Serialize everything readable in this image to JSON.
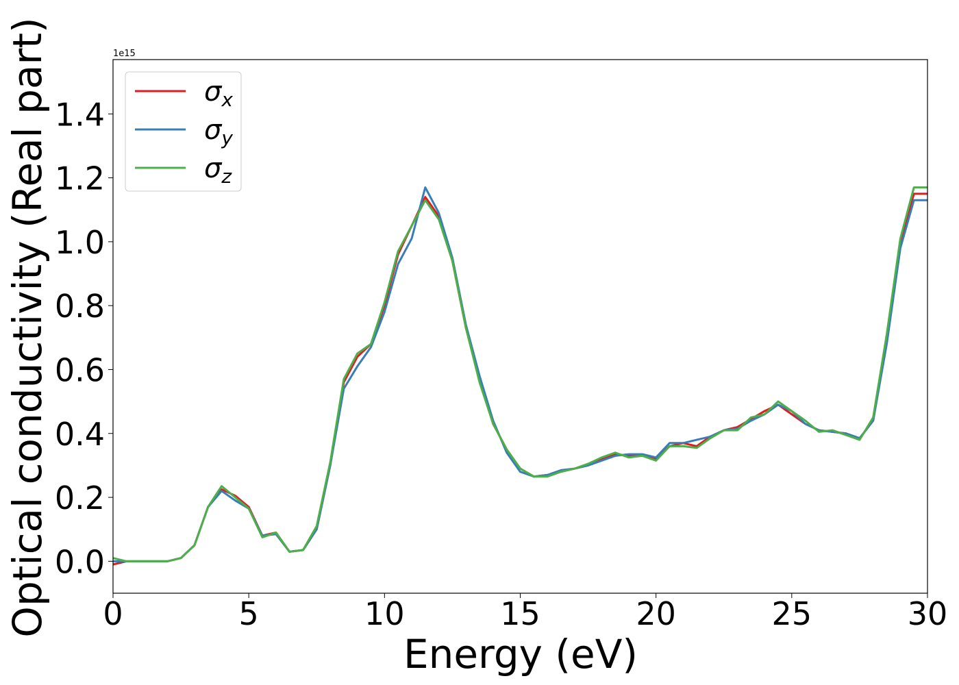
{
  "chart_data": {
    "type": "line",
    "xlabel": "Energy (eV)",
    "ylabel": "Optical conductivity (Real part)",
    "y_offset_label": "1e15",
    "xlim": [
      0,
      30
    ],
    "ylim": [
      -0.1,
      1.57
    ],
    "xticks": [
      0,
      5,
      10,
      15,
      20,
      25,
      30
    ],
    "yticks": [
      {
        "value": 0,
        "label": "0.0"
      },
      {
        "value": 0.2,
        "label": "0.2"
      },
      {
        "value": 0.4,
        "label": "0.4"
      },
      {
        "value": 0.6,
        "label": "0.6"
      },
      {
        "value": 0.8,
        "label": "0.8"
      },
      {
        "value": 1.0,
        "label": "1.0"
      },
      {
        "value": 1.2,
        "label": "1.2"
      },
      {
        "value": 1.4,
        "label": "1.4"
      }
    ],
    "legend": "upper left",
    "x": [
      0,
      0.5,
      1,
      1.5,
      2,
      2.5,
      3,
      3.5,
      4,
      4.5,
      5,
      5.5,
      6,
      6.5,
      7,
      7.5,
      8,
      8.5,
      9,
      9.5,
      10,
      10.5,
      11,
      11.5,
      12,
      12.5,
      13,
      13.5,
      14,
      14.5,
      15,
      15.5,
      16,
      16.5,
      17,
      17.5,
      18,
      18.5,
      19,
      19.5,
      20,
      20.5,
      21,
      21.5,
      22,
      22.5,
      23,
      23.5,
      24,
      24.5,
      25,
      25.5,
      26,
      26.5,
      27,
      27.5,
      28,
      28.5,
      29,
      29.5,
      30
    ],
    "series": [
      {
        "name": "σx",
        "color": "#e41a1c",
        "values": [
          -0.01,
          0.0,
          0.0,
          0.0,
          0.0,
          0.01,
          0.05,
          0.17,
          0.225,
          0.205,
          0.17,
          0.08,
          0.09,
          0.03,
          0.035,
          0.1,
          0.3,
          0.56,
          0.64,
          0.68,
          0.8,
          0.96,
          1.05,
          1.14,
          1.08,
          0.94,
          0.73,
          0.57,
          0.43,
          0.35,
          0.29,
          0.265,
          0.27,
          0.28,
          0.29,
          0.3,
          0.32,
          0.335,
          0.33,
          0.33,
          0.32,
          0.36,
          0.37,
          0.36,
          0.39,
          0.41,
          0.42,
          0.445,
          0.47,
          0.49,
          0.46,
          0.43,
          0.41,
          0.405,
          0.4,
          0.385,
          0.44,
          0.7,
          1.0,
          1.15,
          1.15
        ]
      },
      {
        "name": "σy",
        "color": "#377eb8",
        "values": [
          0.0,
          0.0,
          0.0,
          0.0,
          0.0,
          0.01,
          0.05,
          0.17,
          0.22,
          0.19,
          0.165,
          0.08,
          0.085,
          0.03,
          0.035,
          0.1,
          0.3,
          0.54,
          0.61,
          0.67,
          0.78,
          0.93,
          1.01,
          1.17,
          1.09,
          0.95,
          0.74,
          0.58,
          0.44,
          0.34,
          0.28,
          0.265,
          0.27,
          0.285,
          0.29,
          0.3,
          0.315,
          0.33,
          0.335,
          0.335,
          0.325,
          0.37,
          0.37,
          0.38,
          0.39,
          0.41,
          0.415,
          0.44,
          0.46,
          0.49,
          0.47,
          0.43,
          0.41,
          0.405,
          0.4,
          0.385,
          0.44,
          0.68,
          0.98,
          1.13,
          1.13
        ]
      },
      {
        "name": "σz",
        "color": "#4daf4a",
        "values": [
          0.01,
          0.0,
          0.0,
          0.0,
          0.0,
          0.01,
          0.05,
          0.17,
          0.235,
          0.2,
          0.165,
          0.075,
          0.09,
          0.03,
          0.035,
          0.11,
          0.31,
          0.57,
          0.65,
          0.68,
          0.81,
          0.97,
          1.05,
          1.13,
          1.07,
          0.94,
          0.73,
          0.56,
          0.43,
          0.35,
          0.29,
          0.265,
          0.265,
          0.28,
          0.29,
          0.305,
          0.325,
          0.34,
          0.325,
          0.33,
          0.315,
          0.36,
          0.36,
          0.355,
          0.385,
          0.41,
          0.41,
          0.45,
          0.46,
          0.5,
          0.47,
          0.44,
          0.405,
          0.41,
          0.395,
          0.38,
          0.45,
          0.71,
          1.01,
          1.17,
          1.17
        ]
      }
    ]
  }
}
